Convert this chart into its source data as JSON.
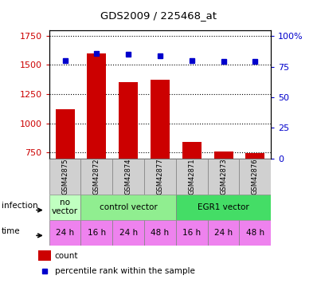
{
  "title": "GDS2009 / 225468_at",
  "samples": [
    "GSM42875",
    "GSM42872",
    "GSM42874",
    "GSM42877",
    "GSM42871",
    "GSM42873",
    "GSM42876"
  ],
  "counts": [
    1120,
    1600,
    1350,
    1375,
    840,
    760,
    745
  ],
  "percentiles": [
    80,
    86,
    85,
    84,
    80,
    79,
    79
  ],
  "ylim_left": [
    700,
    1800
  ],
  "ylim_right": [
    0,
    105
  ],
  "yticks_left": [
    750,
    1000,
    1250,
    1500,
    1750
  ],
  "yticks_right": [
    0,
    25,
    50,
    75,
    100
  ],
  "ytick_labels_right": [
    "0",
    "25",
    "50",
    "75",
    "100%"
  ],
  "time_labels": [
    "24 h",
    "16 h",
    "24 h",
    "48 h",
    "16 h",
    "24 h",
    "48 h"
  ],
  "time_color": "#ee82ee",
  "bar_color": "#cc0000",
  "dot_color": "#0000cc",
  "label_color_left": "#cc0000",
  "label_color_right": "#0000cc",
  "n_samples": 7,
  "infection_groups": [
    {
      "label": "no\nvector",
      "start": 0,
      "end": 1,
      "color": "#c0ffc0"
    },
    {
      "label": "control vector",
      "start": 1,
      "end": 4,
      "color": "#90ee90"
    },
    {
      "label": "EGR1 vector",
      "start": 4,
      "end": 7,
      "color": "#44dd66"
    }
  ],
  "sample_bg_color": "#d0d0d0",
  "sample_edge_color": "#808080"
}
